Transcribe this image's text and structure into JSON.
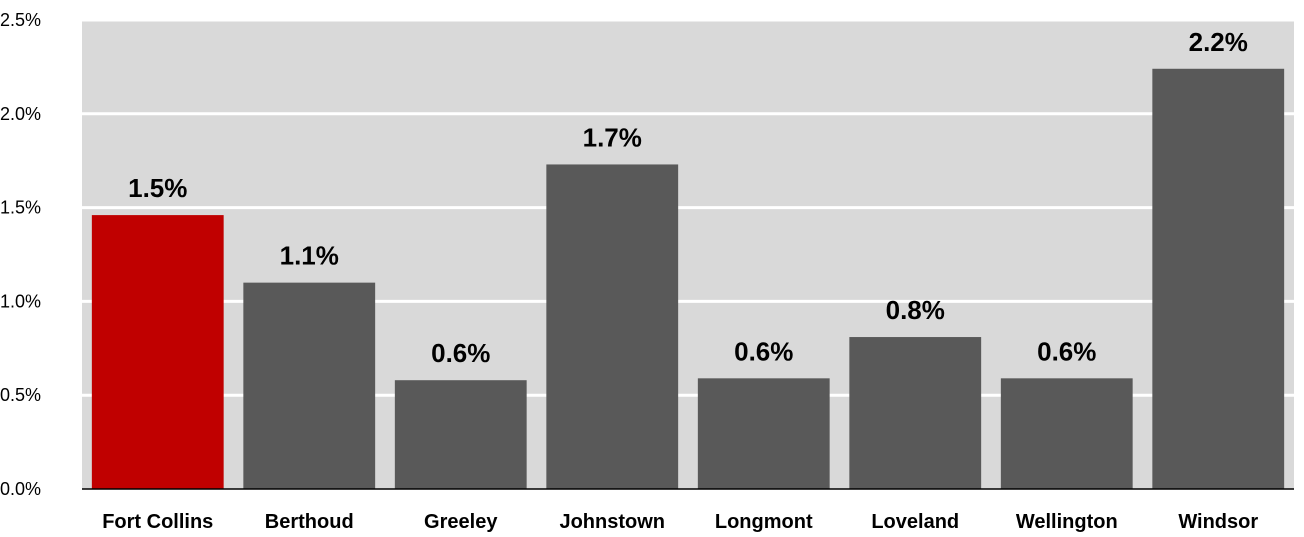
{
  "chart_data": {
    "type": "bar",
    "categories": [
      "Fort Collins",
      "Berthoud",
      "Greeley",
      "Johnstown",
      "Longmont",
      "Loveland",
      "Wellington",
      "Windsor"
    ],
    "values": [
      1.46,
      1.1,
      0.58,
      1.73,
      0.59,
      0.81,
      0.59,
      2.24
    ],
    "data_labels": [
      "1.5%",
      "1.1%",
      "0.6%",
      "1.7%",
      "0.6%",
      "0.8%",
      "0.6%",
      "2.2%"
    ],
    "highlight_index": 0,
    "ylim": [
      0,
      2.5
    ],
    "y_ticks": [
      {
        "value": 0,
        "label": "0.0%"
      },
      {
        "value": 0.5,
        "label": "0.5%"
      },
      {
        "value": 1.0,
        "label": "1.0%"
      },
      {
        "value": 1.5,
        "label": "1.5%"
      },
      {
        "value": 2.0,
        "label": "2.0%"
      },
      {
        "value": 2.5,
        "label": "2.5%"
      }
    ],
    "grid": true,
    "legend": "none",
    "title": "",
    "xlabel": "",
    "ylabel": ""
  },
  "colors": {
    "plot_background": "#d9d9d9",
    "gridline": "#ffffff",
    "bar": "#595959",
    "highlight_bar": "#c00000",
    "axis_line": "#000000"
  }
}
